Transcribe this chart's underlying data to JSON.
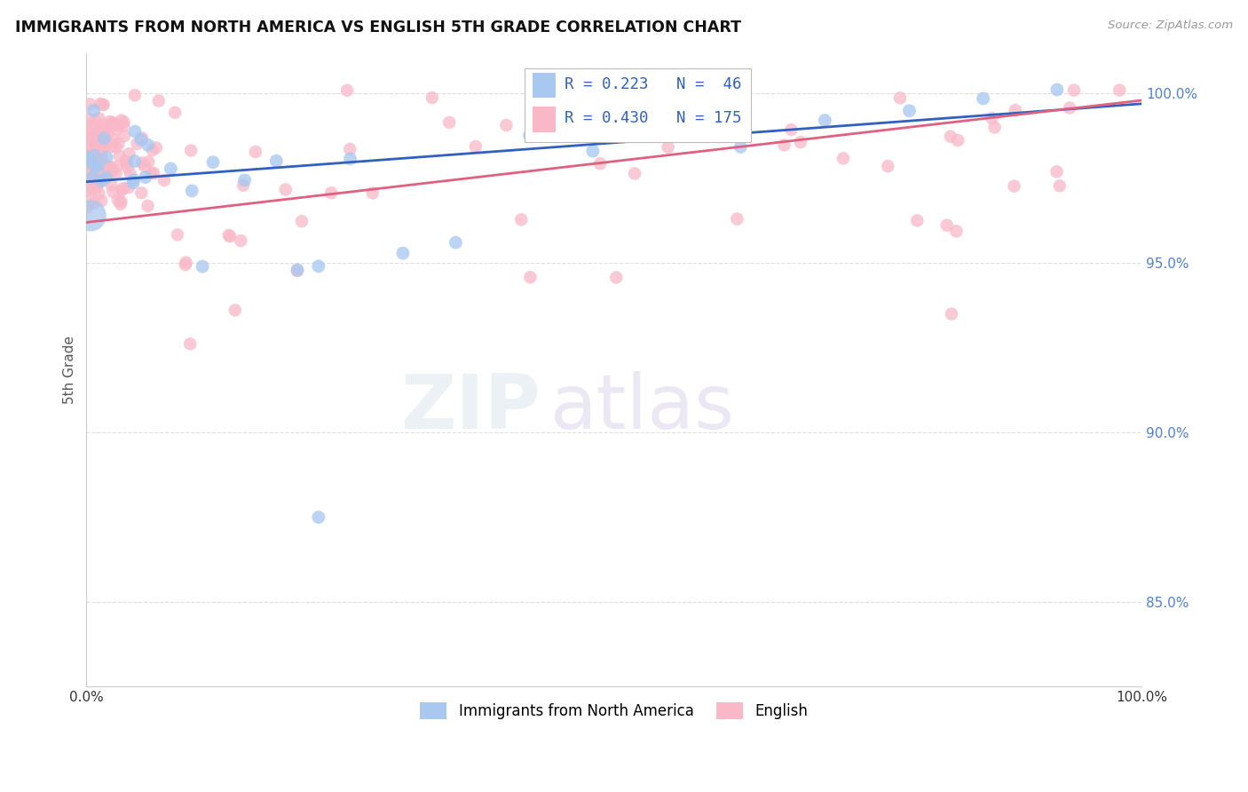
{
  "title": "IMMIGRANTS FROM NORTH AMERICA VS ENGLISH 5TH GRADE CORRELATION CHART",
  "source": "Source: ZipAtlas.com",
  "ylabel": "5th Grade",
  "R_blue": 0.223,
  "N_blue": 46,
  "R_pink": 0.43,
  "N_pink": 175,
  "blue_color": "#a8c8f0",
  "pink_color": "#f8b8c8",
  "blue_line_color": "#3060c0",
  "pink_line_color": "#e06080",
  "tick_color": "#5080d0",
  "legend_blue_label": "Immigrants from North America",
  "legend_pink_label": "English",
  "watermark_zip": "ZIP",
  "watermark_atlas": "atlas",
  "xlim": [
    0.0,
    1.0
  ],
  "ylim": [
    0.825,
    1.012
  ],
  "yticks": [
    0.85,
    0.9,
    0.95,
    1.0
  ],
  "ytick_labels": [
    "85.0%",
    "90.0%",
    "95.0%",
    "100.0%"
  ],
  "blue_trend_y0": 0.974,
  "blue_trend_y1": 0.997,
  "pink_trend_y0": 0.962,
  "pink_trend_y1": 0.998
}
